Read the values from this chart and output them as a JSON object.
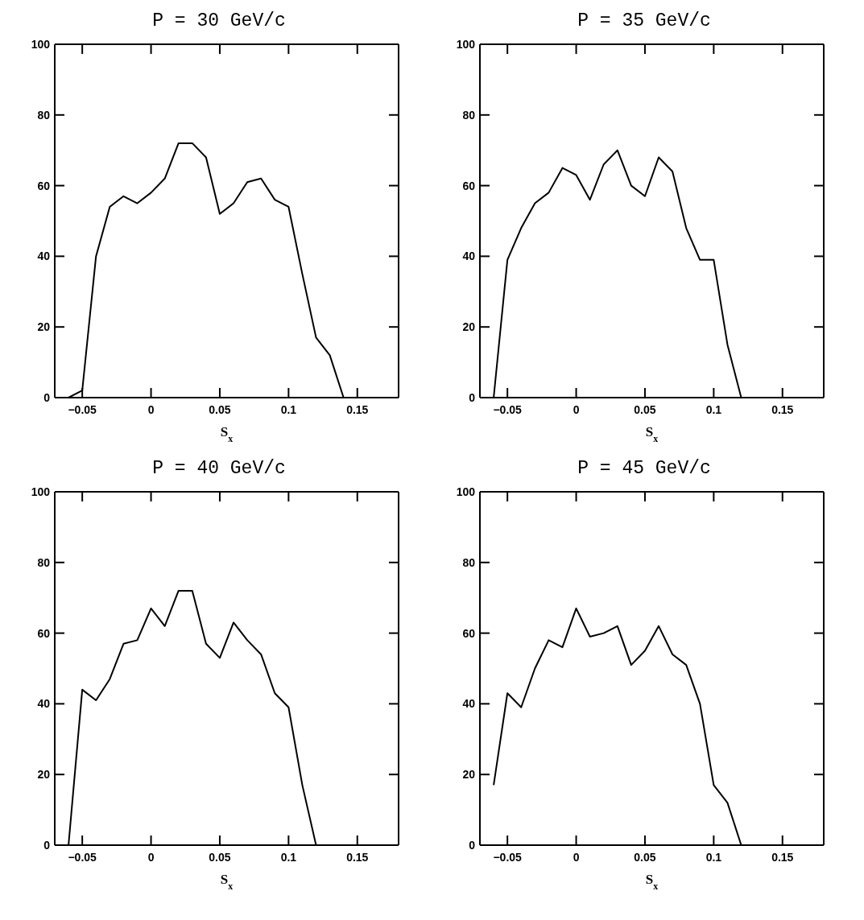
{
  "chart_data": [
    {
      "type": "line",
      "title": "P = 30 GeV/c",
      "xlabel": "S$_{x}$",
      "color": "#000000",
      "x": [
        -0.06,
        -0.05,
        -0.04,
        -0.03,
        -0.02,
        -0.01,
        0,
        0.01,
        0.02,
        0.03,
        0.04,
        0.05,
        0.06,
        0.07,
        0.08,
        0.09,
        0.1,
        0.11,
        0.12,
        0.13,
        0.14
      ],
      "values": [
        0,
        2,
        40,
        54,
        57,
        55,
        58,
        62,
        72,
        72,
        68,
        52,
        55,
        61,
        62,
        56,
        54,
        35,
        17,
        12,
        0
      ],
      "xlim": [
        -0.07,
        0.18
      ],
      "xticks": [
        -0.05,
        0,
        0.05,
        0.1,
        0.15
      ],
      "ylim": [
        0,
        100
      ],
      "yticks": [
        0,
        20,
        40,
        60,
        80,
        100
      ]
    },
    {
      "type": "line",
      "title": "P = 35 GeV/c",
      "xlabel": "S$_{x}$",
      "color": "#000000",
      "x": [
        -0.06,
        -0.05,
        -0.04,
        -0.03,
        -0.02,
        -0.01,
        0,
        0.01,
        0.02,
        0.03,
        0.04,
        0.05,
        0.06,
        0.07,
        0.08,
        0.09,
        0.1,
        0.11,
        0.12
      ],
      "values": [
        0,
        39,
        48,
        55,
        58,
        65,
        63,
        56,
        66,
        70,
        60,
        57,
        68,
        64,
        48,
        39,
        39,
        15,
        0
      ],
      "xlim": [
        -0.07,
        0.18
      ],
      "xticks": [
        -0.05,
        0,
        0.05,
        0.1,
        0.15
      ],
      "ylim": [
        0,
        100
      ],
      "yticks": [
        0,
        20,
        40,
        60,
        80,
        100
      ]
    },
    {
      "type": "line",
      "title": "P = 40 GeV/c",
      "xlabel": "S$_{x}$",
      "color": "#000000",
      "x": [
        -0.06,
        -0.05,
        -0.04,
        -0.03,
        -0.02,
        -0.01,
        0,
        0.01,
        0.02,
        0.03,
        0.04,
        0.05,
        0.06,
        0.07,
        0.08,
        0.09,
        0.1,
        0.11,
        0.12
      ],
      "values": [
        0,
        44,
        41,
        47,
        57,
        58,
        67,
        62,
        72,
        72,
        57,
        53,
        63,
        58,
        54,
        43,
        39,
        17,
        0
      ],
      "xlim": [
        -0.07,
        0.18
      ],
      "xticks": [
        -0.05,
        0,
        0.05,
        0.1,
        0.15
      ],
      "ylim": [
        0,
        100
      ],
      "yticks": [
        0,
        20,
        40,
        60,
        80,
        100
      ]
    },
    {
      "type": "line",
      "title": "P = 45 GeV/c",
      "xlabel": "S$_{x}$",
      "color": "#000000",
      "x": [
        -0.06,
        -0.05,
        -0.04,
        -0.03,
        -0.02,
        -0.01,
        0,
        0.01,
        0.02,
        0.03,
        0.04,
        0.05,
        0.06,
        0.07,
        0.08,
        0.09,
        0.1,
        0.11,
        0.12
      ],
      "values": [
        17,
        43,
        39,
        50,
        58,
        56,
        67,
        59,
        60,
        62,
        51,
        55,
        62,
        54,
        51,
        40,
        17,
        12,
        0
      ],
      "xlim": [
        -0.07,
        0.18
      ],
      "xticks": [
        -0.05,
        0,
        0.05,
        0.1,
        0.15
      ],
      "ylim": [
        0,
        100
      ],
      "yticks": [
        0,
        20,
        40,
        60,
        80,
        100
      ]
    }
  ]
}
